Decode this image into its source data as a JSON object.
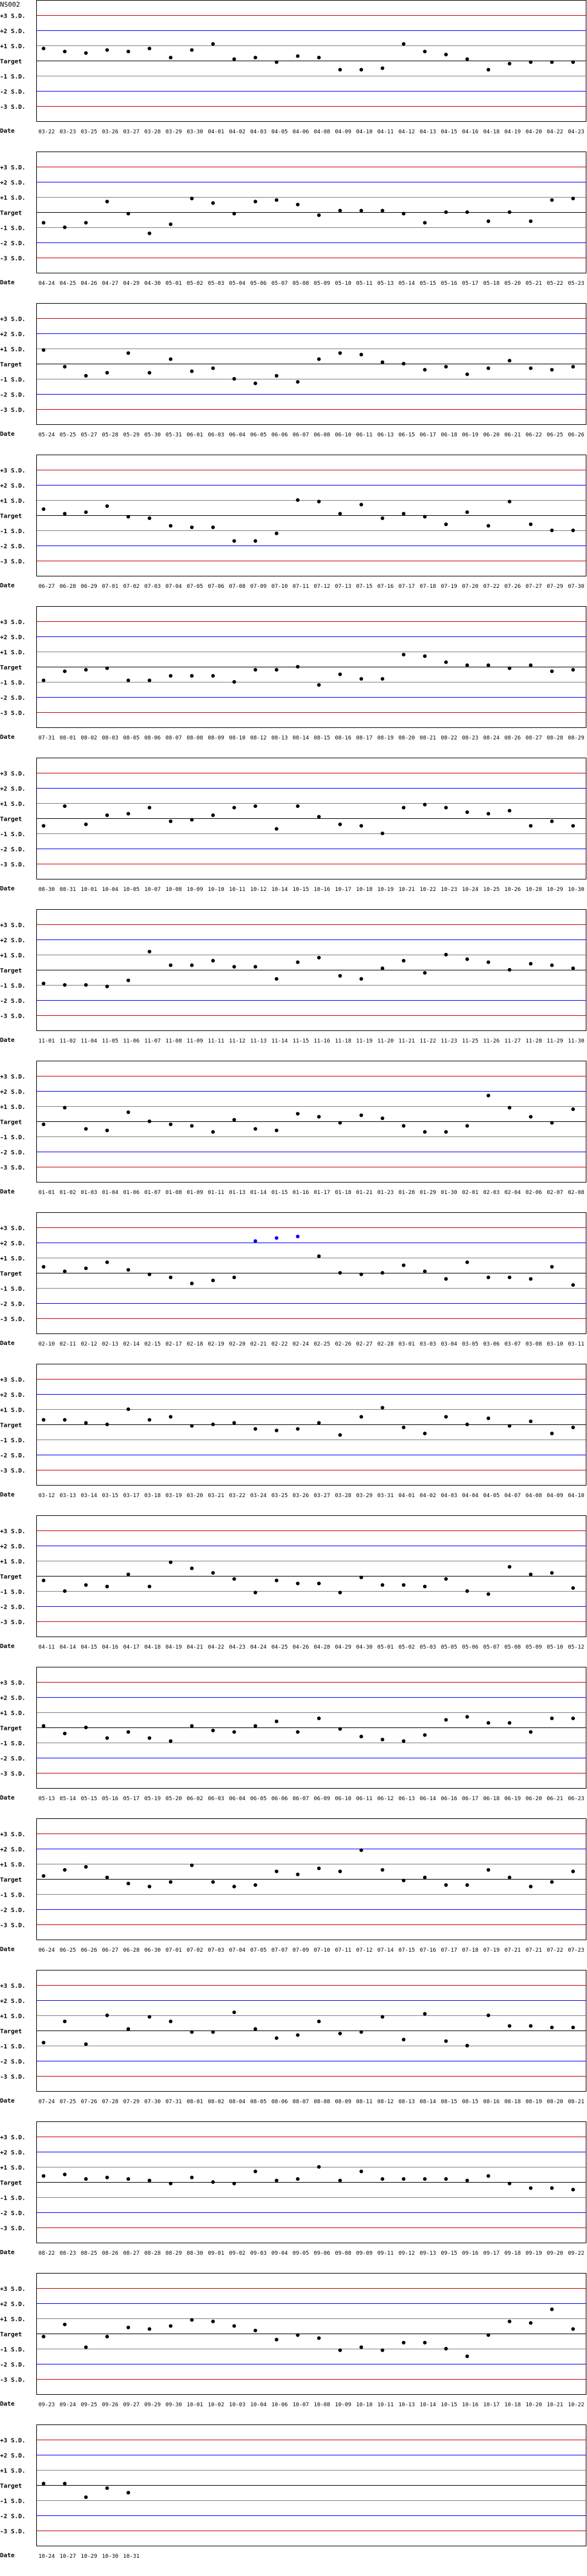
{
  "chart_data": {
    "type": "scatter",
    "title": "NS002",
    "xlabel": "Date",
    "ylim": [
      -4,
      4
    ],
    "grid": true,
    "reference_lines": [
      {
        "label": "+3 S.D.",
        "value": 3,
        "color": "#cc0000"
      },
      {
        "label": "+2 S.D.",
        "value": 2,
        "color": "#0000ff"
      },
      {
        "label": "+1 S.D.",
        "value": 1,
        "color": "#808080"
      },
      {
        "label": "Target",
        "value": 0,
        "color": "#000000"
      },
      {
        "label": "-1 S.D.",
        "value": -1,
        "color": "#808080"
      },
      {
        "label": "-2 S.D.",
        "value": -2,
        "color": "#0000ff"
      },
      {
        "label": "-3 S.D.",
        "value": -3,
        "color": "#cc0000"
      }
    ],
    "point_colors": {
      "normal": "#000000",
      "beyond_2sd": "#0000ff"
    },
    "panels": [
      {
        "dates": [
          "03-22",
          "03-23",
          "03-25",
          "03-26",
          "03-27",
          "03-28",
          "03-29",
          "03-30",
          "04-01",
          "04-02",
          "04-03",
          "04-05",
          "04-06",
          "04-08",
          "04-09",
          "04-10",
          "04-11",
          "04-12",
          "04-13",
          "04-15",
          "04-16",
          "04-18",
          "04-19",
          "04-20",
          "04-22",
          "04-23"
        ],
        "values": [
          0.8,
          0.6,
          0.5,
          0.7,
          0.6,
          0.8,
          0.2,
          0.7,
          1.1,
          0.1,
          0.2,
          -0.1,
          0.3,
          0.2,
          -0.6,
          -0.6,
          -0.5,
          1.1,
          0.6,
          0.4,
          0.1,
          -0.6,
          -0.2,
          -0.1,
          -0.1,
          -0.1
        ]
      },
      {
        "dates": [
          "04-24",
          "04-25",
          "04-26",
          "04-27",
          "04-29",
          "04-30",
          "05-01",
          "05-02",
          "05-03",
          "05-04",
          "05-06",
          "05-07",
          "05-08",
          "05-09",
          "05-10",
          "05-11",
          "05-13",
          "05-14",
          "05-15",
          "05-16",
          "05-17",
          "05-18",
          "05-20",
          "05-21",
          "05-22",
          "05-23"
        ],
        "values": [
          -0.7,
          -1.0,
          -0.7,
          0.7,
          -0.1,
          -1.4,
          -0.8,
          0.9,
          0.6,
          -0.1,
          0.7,
          0.8,
          0.5,
          -0.2,
          0.1,
          0.1,
          0.1,
          -0.1,
          -0.7,
          0,
          0,
          -0.6,
          0,
          -0.6,
          0.8,
          0.9
        ]
      },
      {
        "dates": [
          "05-24",
          "05-25",
          "05-27",
          "05-28",
          "05-29",
          "05-30",
          "05-31",
          "06-01",
          "06-03",
          "06-04",
          "06-05",
          "06-06",
          "06-07",
          "06-08",
          "06-10",
          "06-11",
          "06-13",
          "06-15",
          "06-17",
          "06-18",
          "06-19",
          "06-20",
          "06-21",
          "06-22",
          "06-25",
          "06-26"
        ],
        "values": [
          0.9,
          -0.2,
          -0.8,
          -0.6,
          0.7,
          -0.6,
          0.3,
          -0.5,
          -0.3,
          -1.0,
          -1.3,
          -0.8,
          -1.2,
          0.3,
          0.7,
          0.6,
          0.1,
          0,
          -0.4,
          -0.2,
          -0.7,
          -0.3,
          0.2,
          -0.3,
          -0.4,
          -0.2
        ]
      },
      {
        "dates": [
          "06-27",
          "06-28",
          "06-29",
          "07-01",
          "07-02",
          "07-03",
          "07-04",
          "07-05",
          "07-06",
          "07-08",
          "07-09",
          "07-10",
          "07-11",
          "07-12",
          "07-13",
          "07-15",
          "07-16",
          "07-17",
          "07-18",
          "07-19",
          "07-20",
          "07-22",
          "07-26",
          "07-27",
          "07-29",
          "07-30"
        ],
        "values": [
          0.4,
          0.1,
          0.2,
          0.6,
          -0.1,
          -0.2,
          -0.7,
          -0.8,
          -0.8,
          -1.7,
          -1.7,
          -1.2,
          1.0,
          0.9,
          0.1,
          0.7,
          -0.2,
          0.1,
          -0.1,
          -0.6,
          0.2,
          -0.7,
          0.9,
          -0.6,
          -1.0,
          -1.0
        ]
      },
      {
        "dates": [
          "07-31",
          "08-01",
          "08-02",
          "08-03",
          "08-05",
          "08-06",
          "08-07",
          "08-08",
          "08-09",
          "08-10",
          "08-12",
          "08-13",
          "08-14",
          "08-15",
          "08-16",
          "08-17",
          "08-19",
          "08-20",
          "08-21",
          "08-22",
          "08-23",
          "08-24",
          "08-26",
          "08-27",
          "08-28",
          "08-29"
        ],
        "values": [
          -0.9,
          -0.3,
          -0.2,
          -0.1,
          -0.9,
          -0.9,
          -0.6,
          -0.6,
          -0.6,
          -1.0,
          -0.2,
          -0.2,
          0,
          -1.2,
          -0.5,
          -0.8,
          -0.8,
          0.8,
          0.7,
          0.3,
          0.1,
          0.1,
          -0.1,
          0.1,
          -0.3,
          -0.2
        ]
      },
      {
        "dates": [
          "08-30",
          "08-31",
          "10-01",
          "10-04",
          "10-05",
          "10-07",
          "10-08",
          "10-09",
          "10-10",
          "10-11",
          "10-12",
          "10-14",
          "10-15",
          "10-16",
          "10-17",
          "10-18",
          "10-19",
          "10-21",
          "10-22",
          "10-23",
          "10-24",
          "10-25",
          "10-26",
          "10-28",
          "10-29",
          "10-30"
        ],
        "values": [
          -0.5,
          0.8,
          -0.4,
          0.2,
          0.3,
          0.7,
          -0.2,
          -0.1,
          0.2,
          0.7,
          0.8,
          -0.7,
          0.8,
          0.1,
          -0.4,
          -0.5,
          -1.0,
          0.7,
          0.9,
          0.7,
          0.4,
          0.3,
          0.5,
          -0.5,
          -0.2,
          -0.5
        ]
      },
      {
        "dates": [
          "11-01",
          "11-02",
          "11-04",
          "11-05",
          "11-06",
          "11-07",
          "11-08",
          "11-09",
          "11-11",
          "11-12",
          "11-13",
          "11-14",
          "11-15",
          "11-16",
          "11-18",
          "11-19",
          "11-20",
          "11-21",
          "11-22",
          "11-23",
          "11-25",
          "11-26",
          "11-27",
          "11-28",
          "11-29",
          "11-30"
        ],
        "values": [
          -0.9,
          -1.0,
          -1.0,
          -1.1,
          -0.7,
          1.2,
          0.3,
          0.3,
          0.6,
          0.2,
          0.2,
          -0.6,
          0.5,
          0.8,
          -0.4,
          -0.6,
          0.1,
          0.6,
          -0.2,
          1.0,
          0.7,
          0.5,
          0,
          0.4,
          0.3,
          0.1
        ]
      },
      {
        "dates": [
          "01-01",
          "01-02",
          "01-03",
          "01-04",
          "01-06",
          "01-07",
          "01-08",
          "01-09",
          "01-11",
          "01-13",
          "01-14",
          "01-15",
          "01-16",
          "01-17",
          "01-18",
          "01-21",
          "01-23",
          "01-28",
          "01-29",
          "01-30",
          "02-01",
          "02-03",
          "02-04",
          "02-06",
          "02-07",
          "02-08"
        ],
        "values": [
          -0.2,
          0.9,
          -0.5,
          -0.6,
          0.6,
          0,
          -0.2,
          -0.3,
          -0.7,
          0.1,
          -0.5,
          -0.6,
          0.5,
          0.3,
          -0.1,
          0.4,
          0.2,
          -0.3,
          -0.7,
          -0.7,
          -0.3,
          1.7,
          0.9,
          0.3,
          -0.1,
          0.8
        ]
      },
      {
        "dates": [
          "02-10",
          "02-11",
          "02-12",
          "02-13",
          "02-14",
          "02-15",
          "02-17",
          "02-18",
          "02-19",
          "02-20",
          "02-21",
          "02-22",
          "02-24",
          "02-25",
          "02-26",
          "02-27",
          "02-28",
          "03-01",
          "03-03",
          "03-04",
          "03-05",
          "03-06",
          "03-07",
          "03-08",
          "03-10",
          "03-11"
        ],
        "values": [
          0.4,
          0.1,
          0.3,
          0.7,
          0.2,
          -0.1,
          -0.3,
          -0.7,
          -0.5,
          -0.3,
          2.1,
          2.3,
          2.4,
          1.1,
          0,
          -0.1,
          0,
          0.5,
          0.1,
          -0.4,
          0.7,
          -0.3,
          -0.3,
          -0.4,
          0.4,
          -0.8
        ]
      },
      {
        "dates": [
          "03-12",
          "03-13",
          "03-14",
          "03-15",
          "03-17",
          "03-18",
          "03-19",
          "03-20",
          "03-21",
          "03-22",
          "03-24",
          "03-25",
          "03-26",
          "03-27",
          "03-28",
          "03-29",
          "03-31",
          "04-01",
          "04-02",
          "04-03",
          "04-04",
          "04-05",
          "04-07",
          "04-08",
          "04-09",
          "04-10"
        ],
        "values": [
          0.3,
          0.3,
          0.1,
          0,
          1.0,
          0.3,
          0.5,
          -0.1,
          0,
          0.1,
          -0.3,
          -0.4,
          -0.3,
          0.1,
          -0.7,
          0.5,
          1.1,
          -0.2,
          -0.6,
          0.5,
          0,
          0.4,
          -0.1,
          0.2,
          -0.6,
          -0.2
        ]
      },
      {
        "dates": [
          "04-11",
          "04-14",
          "04-15",
          "04-16",
          "04-17",
          "04-18",
          "04-19",
          "04-21",
          "04-22",
          "04-23",
          "04-24",
          "04-25",
          "04-26",
          "04-28",
          "04-29",
          "04-30",
          "05-01",
          "05-02",
          "05-03",
          "05-05",
          "05-06",
          "05-07",
          "05-08",
          "05-09",
          "05-10",
          "05-12"
        ],
        "values": [
          -0.3,
          -1.0,
          -0.6,
          -0.7,
          0.1,
          -0.7,
          0.9,
          0.5,
          0.2,
          -0.2,
          -1.1,
          -0.3,
          -0.5,
          -0.5,
          -1.1,
          -0.1,
          -0.6,
          -0.6,
          -0.7,
          -0.2,
          -1.0,
          -1.2,
          0.6,
          0.1,
          0.2,
          -0.8
        ]
      },
      {
        "dates": [
          "05-13",
          "05-14",
          "05-15",
          "05-16",
          "05-17",
          "05-19",
          "05-20",
          "06-02",
          "06-03",
          "06-04",
          "06-05",
          "06-06",
          "06-07",
          "06-09",
          "06-10",
          "06-11",
          "06-12",
          "06-13",
          "06-14",
          "06-16",
          "06-17",
          "06-18",
          "06-19",
          "06-20",
          "06-21",
          "06-23"
        ],
        "values": [
          0.1,
          -0.4,
          0,
          -0.7,
          -0.3,
          -0.7,
          -0.9,
          0.1,
          -0.2,
          -0.3,
          0.1,
          0.4,
          -0.3,
          0.6,
          -0.1,
          -0.6,
          -0.8,
          -0.9,
          -0.5,
          0.5,
          0.7,
          0.3,
          0.3,
          -0.3,
          0.6,
          0.6
        ]
      },
      {
        "dates": [
          "06-24",
          "06-25",
          "06-26",
          "06-27",
          "06-28",
          "06-30",
          "07-01",
          "07-02",
          "07-03",
          "07-04",
          "07-05",
          "07-07",
          "07-09",
          "07-10",
          "07-11",
          "07-12",
          "07-14",
          "07-15",
          "07-16",
          "07-17",
          "07-18",
          "07-19",
          "07-21",
          "07-21",
          "07-22",
          "07-23"
        ],
        "values": [
          0.2,
          0.6,
          0.8,
          0.1,
          -0.3,
          -0.5,
          -0.2,
          0.9,
          -0.2,
          -0.5,
          -0.4,
          0.5,
          0.3,
          0.7,
          0.5,
          1.9,
          0.6,
          -0.1,
          0.1,
          -0.4,
          -0.4,
          0.6,
          0.1,
          -0.5,
          -0.2,
          0.5
        ]
      },
      {
        "dates": [
          "07-24",
          "07-25",
          "07-26",
          "07-28",
          "07-29",
          "07-30",
          "07-31",
          "08-01",
          "08-02",
          "08-04",
          "08-05",
          "08-06",
          "08-07",
          "08-08",
          "08-09",
          "08-11",
          "08-12",
          "08-13",
          "08-14",
          "08-15",
          "08-15",
          "08-16",
          "08-18",
          "08-19",
          "08-20",
          "08-21"
        ],
        "values": [
          -0.8,
          0.6,
          -0.9,
          1.0,
          0.1,
          0.9,
          0.6,
          -0.1,
          -0.1,
          1.2,
          0.1,
          -0.5,
          -0.3,
          0.6,
          -0.2,
          -0.1,
          0.9,
          -0.6,
          1.1,
          -0.7,
          -1.0,
          1.0,
          0.3,
          0.3,
          0.2,
          0.2
        ]
      },
      {
        "dates": [
          "08-22",
          "08-23",
          "08-25",
          "08-26",
          "08-27",
          "08-28",
          "08-29",
          "08-30",
          "09-01",
          "09-02",
          "09-03",
          "09-04",
          "09-05",
          "09-06",
          "09-08",
          "09-09",
          "09-11",
          "09-12",
          "09-13",
          "09-15",
          "09-16",
          "09-17",
          "09-18",
          "09-19",
          "09-20",
          "09-22"
        ],
        "values": [
          0.4,
          0.5,
          0.2,
          0.3,
          0.2,
          0.1,
          -0.1,
          0.3,
          0,
          -0.1,
          0.7,
          0.1,
          0.2,
          1.0,
          0.1,
          0.7,
          0.2,
          0.2,
          0.2,
          0.2,
          0.1,
          0.4,
          -0.1,
          -0.4,
          -0.4,
          -0.5
        ]
      },
      {
        "dates": [
          "09-23",
          "09-24",
          "09-25",
          "09-26",
          "09-27",
          "09-29",
          "09-30",
          "10-01",
          "10-02",
          "10-03",
          "10-04",
          "10-06",
          "10-07",
          "10-08",
          "10-09",
          "10-10",
          "10-11",
          "10-13",
          "10-14",
          "10-15",
          "10-16",
          "10-17",
          "10-18",
          "10-20",
          "10-21",
          "10-22"
        ],
        "values": [
          -0.2,
          0.6,
          -0.9,
          -0.2,
          0.4,
          0.3,
          0.5,
          0.9,
          0.8,
          0.5,
          0.2,
          -0.4,
          -0.1,
          -0.3,
          -1.1,
          -0.9,
          -1.1,
          -0.6,
          -0.6,
          -1.0,
          -1.5,
          -0.1,
          0.8,
          0.7,
          1.6,
          0.3
        ]
      },
      {
        "dates": [
          "10-24",
          "10-27",
          "10-29",
          "10-30",
          "10-31"
        ],
        "values": [
          0.1,
          0.1,
          -0.8,
          -0.2,
          -0.5
        ]
      }
    ]
  }
}
